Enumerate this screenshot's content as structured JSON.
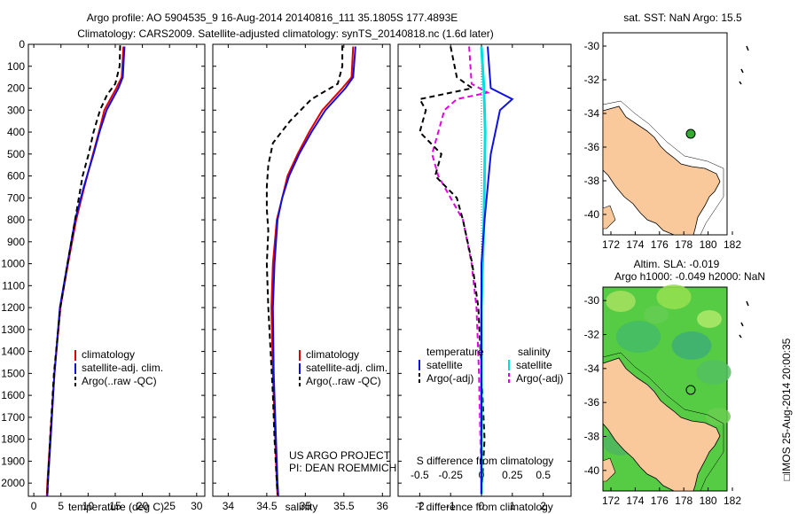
{
  "title_line1": "Argo profile: AO 5904535_9 16-Aug-2014 20140816_111 35.1805S 177.4893E",
  "title_line2": "Climatology: CARS2009. Satellite-adjusted climatology: synTS_20140818.nc (1.6d later)",
  "y_ticks": [
    "0",
    "100",
    "200",
    "300",
    "400",
    "500",
    "600",
    "700",
    "800",
    "900",
    "1000",
    "1100",
    "1200",
    "1300",
    "1400",
    "1500",
    "1600",
    "1700",
    "1800",
    "1900",
    "2000"
  ],
  "colors": {
    "climatology": "#e00000",
    "satellite": "#1010e0",
    "argo": "#000000",
    "salinity_sat": "#00e0e0",
    "salinity_argo": "#e000e0",
    "land": "#f9c89b",
    "ocean_grid": "#33cc33"
  },
  "chart_data": [
    {
      "type": "line",
      "name": "temperature",
      "xlabel": "temperature (deg C)",
      "xlim": [
        -1,
        31.5
      ],
      "ylim": [
        2060,
        0
      ],
      "x_ticks": [
        "0",
        "5",
        "10",
        "15",
        "20",
        "25",
        "30"
      ],
      "legend": [
        "climatology",
        "satellite-adj. clim.",
        "Argo(..raw -QC)"
      ],
      "series": [
        {
          "name": "climatology",
          "depth": [
            10,
            150,
            200,
            300,
            400,
            500,
            650,
            800,
            1000,
            1200,
            1500,
            1800,
            2000,
            2060
          ],
          "values": [
            16.5,
            16.2,
            15.2,
            13.0,
            12.0,
            10.9,
            9.3,
            7.8,
            6.3,
            4.9,
            3.8,
            3.0,
            2.5,
            2.4
          ]
        },
        {
          "name": "satellite-adj. clim.",
          "depth": [
            10,
            150,
            200,
            300,
            400,
            500,
            650,
            800,
            1000,
            1200,
            1500,
            1800,
            2000,
            2060
          ],
          "values": [
            16.7,
            16.4,
            15.6,
            13.4,
            12.1,
            11.0,
            9.2,
            7.6,
            6.2,
            4.8,
            3.8,
            3.1,
            2.6,
            2.5
          ]
        },
        {
          "name": "Argo(..raw -QC)",
          "depth": [
            5,
            100,
            180,
            230,
            300,
            400,
            500,
            600,
            700,
            800,
            1000,
            1200,
            1500,
            1800,
            2000,
            2050
          ],
          "values": [
            15.9,
            15.8,
            15.0,
            13.5,
            12.2,
            11.0,
            10.1,
            9.0,
            8.3,
            7.6,
            6.2,
            4.9,
            3.7,
            3.0,
            2.6,
            2.5
          ]
        }
      ]
    },
    {
      "type": "line",
      "name": "salinity",
      "xlabel": "salinity",
      "xlim": [
        33.8,
        36.1
      ],
      "ylim": [
        2060,
        0
      ],
      "x_ticks": [
        "34",
        "34.5",
        "35",
        "35.5",
        "36"
      ],
      "legend": [
        "climatology",
        "satellite-adj. clim.",
        "Argo(..raw -QC)"
      ],
      "annotation": [
        "US ARGO PROJECT",
        "PI: DEAN ROEMMICH"
      ],
      "series": [
        {
          "name": "climatology",
          "depth": [
            10,
            150,
            200,
            300,
            400,
            500,
            600,
            700,
            800,
            1000,
            1200,
            1500,
            1700,
            2000,
            2060
          ],
          "values": [
            35.62,
            35.6,
            35.48,
            35.22,
            35.05,
            34.9,
            34.77,
            34.7,
            34.63,
            34.58,
            34.56,
            34.58,
            34.6,
            34.63,
            34.64
          ]
        },
        {
          "name": "satellite-adj. clim.",
          "depth": [
            10,
            150,
            200,
            300,
            400,
            500,
            600,
            700,
            800,
            1000,
            1200,
            1500,
            1700,
            2000,
            2060
          ],
          "values": [
            35.65,
            35.62,
            35.52,
            35.26,
            35.08,
            34.92,
            34.79,
            34.7,
            34.64,
            34.6,
            34.58,
            34.59,
            34.61,
            34.64,
            34.65
          ]
        },
        {
          "name": "Argo(..raw -QC)",
          "depth": [
            5,
            100,
            180,
            250,
            350,
            450,
            550,
            650,
            750,
            850,
            1000,
            1200,
            1400,
            1600,
            1800,
            2000,
            2050
          ],
          "values": [
            35.48,
            35.48,
            35.42,
            35.08,
            34.8,
            34.58,
            34.52,
            34.5,
            34.5,
            34.52,
            34.5,
            34.52,
            34.55,
            34.58,
            34.6,
            34.63,
            34.64
          ]
        }
      ]
    },
    {
      "type": "line",
      "name": "difference",
      "xlabel": "T difference from climatology",
      "xlabel_top": "S difference from climatology",
      "xlim_T": [
        -2.7,
        2.9
      ],
      "x_ticks_T": [
        "-2",
        "-1",
        "0",
        "1",
        "2"
      ],
      "xlim_S": [
        -0.675,
        0.725
      ],
      "x_ticks_S": [
        "-0.5",
        "-0.25",
        "0",
        "0.25",
        "0.5"
      ],
      "legend_headers": [
        "temperature",
        "salinity"
      ],
      "legend": [
        "satellite",
        "Argo(-adj)",
        "satellite",
        "Argo(-adj)"
      ],
      "series": [
        {
          "name": "T satellite",
          "axis": "T",
          "depth": [
            10,
            200,
            250,
            300,
            500,
            800,
            1000,
            1500,
            2000,
            2050
          ],
          "values": [
            0.2,
            0.3,
            1.0,
            0.6,
            0.3,
            0.1,
            0.0,
            0.0,
            0.0,
            0.0
          ]
        },
        {
          "name": "T Argo(-adj)",
          "axis": "T",
          "depth": [
            10,
            150,
            200,
            250,
            300,
            400,
            500,
            600,
            700,
            800,
            1000,
            1200,
            1500,
            1800,
            2050
          ],
          "values": [
            -1.0,
            -0.8,
            -0.3,
            -2.0,
            -1.8,
            -2.0,
            -1.3,
            -1.5,
            -0.8,
            -0.6,
            -0.3,
            -0.1,
            0.0,
            0.1,
            0.0
          ]
        },
        {
          "name": "S satellite",
          "axis": "S",
          "depth": [
            10,
            200,
            400,
            800,
            1200,
            1500,
            2050
          ],
          "values": [
            0.0,
            0.02,
            0.03,
            0.02,
            0.0,
            0.0,
            0.0
          ]
        },
        {
          "name": "S Argo(-adj)",
          "axis": "S",
          "depth": [
            10,
            180,
            220,
            250,
            300,
            400,
            500,
            600,
            700,
            800,
            1000,
            1200,
            1500,
            2050
          ],
          "values": [
            -0.1,
            -0.08,
            0.05,
            -0.2,
            -0.3,
            -0.35,
            -0.4,
            -0.35,
            -0.25,
            -0.15,
            -0.08,
            -0.04,
            -0.02,
            0.0
          ]
        }
      ]
    }
  ],
  "map_top": {
    "title": "sat. SST: NaN Argo: 15.5",
    "y_ticks": [
      "-30",
      "-32",
      "-34",
      "-36",
      "-38",
      "-40"
    ],
    "x_ticks": [
      "172",
      "174",
      "176",
      "178",
      "180",
      "182"
    ],
    "marker": "Argo float location (green dot)"
  },
  "map_bottom": {
    "title_line1": "Altim. SLA: -0.019",
    "title_line2": "Argo h1000: -0.049 h2000: NaN",
    "y_ticks": [
      "-30",
      "-32",
      "-34",
      "-36",
      "-38",
      "-40"
    ],
    "x_ticks": [
      "172",
      "174",
      "176",
      "178",
      "180",
      "182"
    ],
    "side_label": "□IMOS 25-Aug-2014 20:00:35"
  }
}
